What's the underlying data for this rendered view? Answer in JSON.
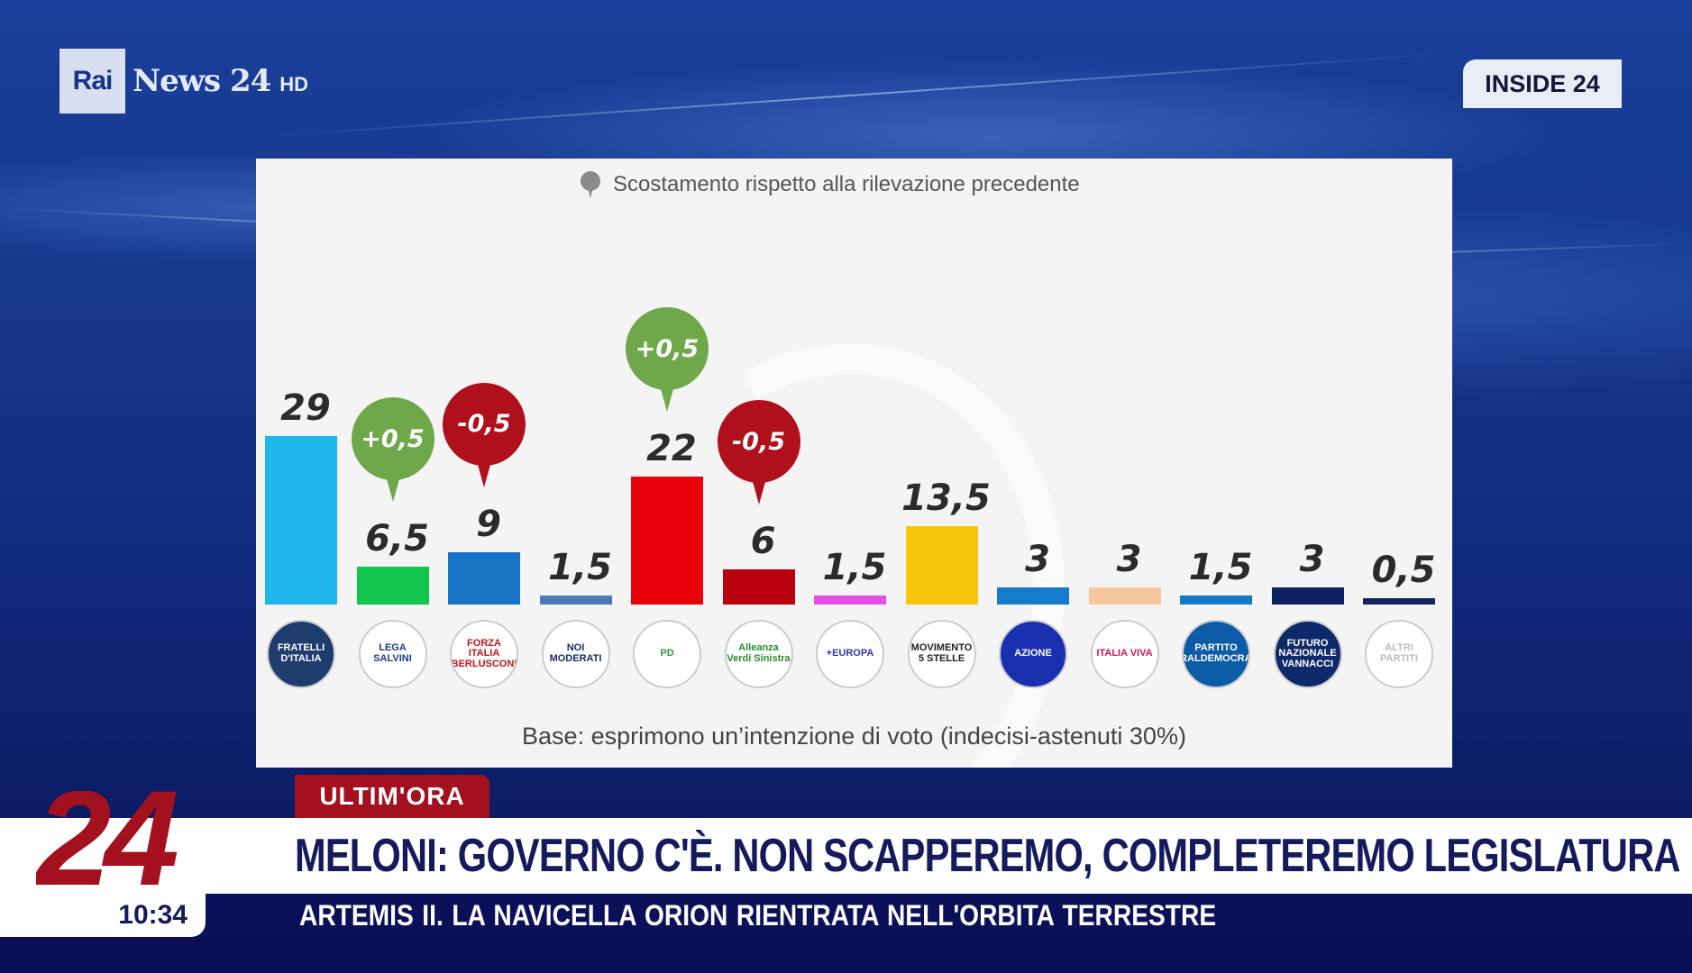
{
  "channel": {
    "logo_box": "Rai",
    "logo_name": "News 24",
    "logo_suffix": "HD",
    "program_badge": "INSIDE 24"
  },
  "chart": {
    "legend_text": "Scostamento rispetto alla rilevazione precedente",
    "base_note": "Base: esprimono un’intenzione di voto (indecisi-astenuti 30%)",
    "colors": {
      "pin_up": "#6fa84a",
      "pin_down": "#b0101c",
      "value_text": "#2b2b2b",
      "background": "#f4f4f4"
    },
    "parties": [
      {
        "logo_text": "FRATELLI D'ITALIA",
        "value_label": "29",
        "bar_color": "#1fb6ec",
        "change": null
      },
      {
        "logo_text": "LEGA SALVINI",
        "value_label": "6,5",
        "bar_color": "#13c44e",
        "change": "+0,5"
      },
      {
        "logo_text": "FORZA ITALIA BERLUSCONI",
        "value_label": "9",
        "bar_color": "#1872c4",
        "change": "-0,5"
      },
      {
        "logo_text": "NOI MODERATI",
        "value_label": "1,5",
        "bar_color": "#4a7bb5",
        "change": null
      },
      {
        "logo_text": "PD",
        "value_label": "22",
        "bar_color": "#e8000a",
        "change": "+0,5"
      },
      {
        "logo_text": "Alleanza Verdi Sinistra",
        "value_label": "6",
        "bar_color": "#b8000e",
        "change": "-0,5"
      },
      {
        "logo_text": "+EUROPA",
        "value_label": "1,5",
        "bar_color": "#e64fe8",
        "change": null
      },
      {
        "logo_text": "MOVIMENTO 5 STELLE",
        "value_label": "13,5",
        "bar_color": "#f8c609",
        "change": null
      },
      {
        "logo_text": "AZIONE",
        "value_label": "3",
        "bar_color": "#167bc8",
        "change": null
      },
      {
        "logo_text": "ITALIA VIVA",
        "value_label": "3",
        "bar_color": "#f7c79d",
        "change": null
      },
      {
        "logo_text": "PARTITO LIBERALDEMOCRATICO",
        "value_label": "1,5",
        "bar_color": "#1479c4",
        "change": null
      },
      {
        "logo_text": "FUTURO NAZIONALE VANNACCI",
        "value_label": "3",
        "bar_color": "#0d2064",
        "change": null
      },
      {
        "logo_text": "ALTRI PARTITI",
        "value_label": "0,5",
        "bar_color": "#13235e",
        "change": null
      }
    ]
  },
  "chart_data": {
    "type": "bar",
    "title": "",
    "subtitle": "Scostamento rispetto alla rilevazione precedente",
    "categories": [
      "Fratelli d'Italia",
      "Lega",
      "Forza Italia",
      "Noi Moderati",
      "PD",
      "Alleanza Verdi Sinistra",
      "+Europa",
      "Movimento 5 Stelle",
      "Azione",
      "Italia Viva",
      "Partito Liberaldemocratico",
      "Futuro Nazionale (Vannacci)",
      "Altri partiti"
    ],
    "values": [
      29,
      6.5,
      9,
      1.5,
      22,
      6,
      1.5,
      13.5,
      3,
      3,
      1.5,
      3,
      0.5
    ],
    "changes": [
      null,
      0.5,
      -0.5,
      null,
      0.5,
      -0.5,
      null,
      null,
      null,
      null,
      null,
      null,
      null
    ],
    "colors": [
      "#1fb6ec",
      "#13c44e",
      "#1872c4",
      "#4a7bb5",
      "#e8000a",
      "#b8000e",
      "#e64fe8",
      "#f8c609",
      "#167bc8",
      "#f7c79d",
      "#1479c4",
      "#0d2064",
      "#13235e"
    ],
    "xlabel": "",
    "ylabel": "%",
    "ylim": [
      0,
      30
    ],
    "grid": false,
    "legend_position": "top",
    "footnote": "Base: esprimono un’intenzione di voto (indecisi-astenuti 30%)"
  },
  "lower_third": {
    "tag": "ULTIM'ORA",
    "headline": "MELONI: GOVERNO C'È. NON SCAPPEREMO, COMPLETEREMO LEGISLATURA",
    "ticker": "ARTEMIS II.  LA NAVICELLA ORION RIENTRATA NELL'ORBITA TERRESTRE",
    "channel_number": "24",
    "clock": "10:34"
  }
}
